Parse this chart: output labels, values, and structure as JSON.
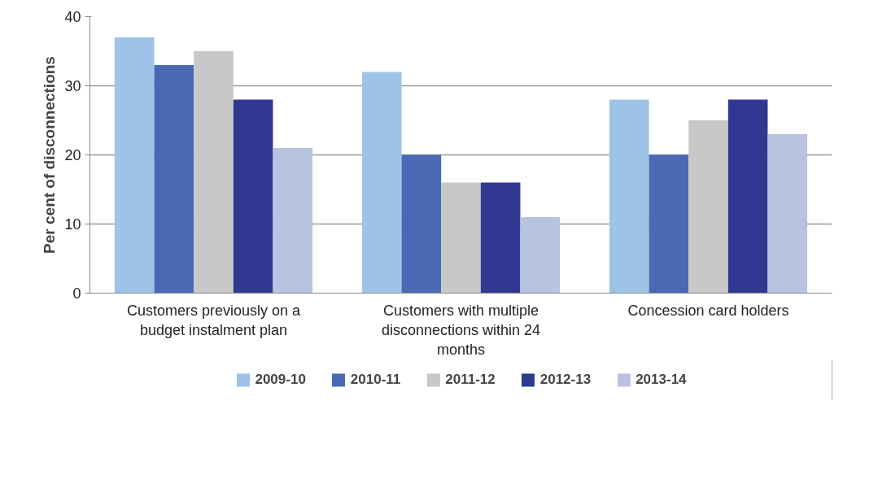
{
  "chart_data": {
    "type": "bar",
    "ylabel": "Per cent of disconnections",
    "categories": [
      "Customers previously on a budget instalment plan",
      "Customers with multiple disconnections within 24 months",
      "Concession card holders"
    ],
    "series": [
      {
        "name": "2009-10",
        "color": "#9dc3e6",
        "values": [
          37,
          32,
          28
        ]
      },
      {
        "name": "2010-11",
        "color": "#4a69b4",
        "values": [
          33,
          20,
          20
        ]
      },
      {
        "name": "2011-12",
        "color": "#c8c8c8",
        "values": [
          35,
          16,
          25
        ]
      },
      {
        "name": "2012-13",
        "color": "#313891",
        "values": [
          28,
          16,
          28
        ]
      },
      {
        "name": "2013-14",
        "color": "#b8c4df",
        "values": [
          21,
          11,
          23
        ]
      }
    ],
    "ylim": [
      0,
      40
    ],
    "yticks": [
      0,
      10,
      20,
      30,
      40
    ],
    "grid": "y",
    "legend": "bottom"
  }
}
